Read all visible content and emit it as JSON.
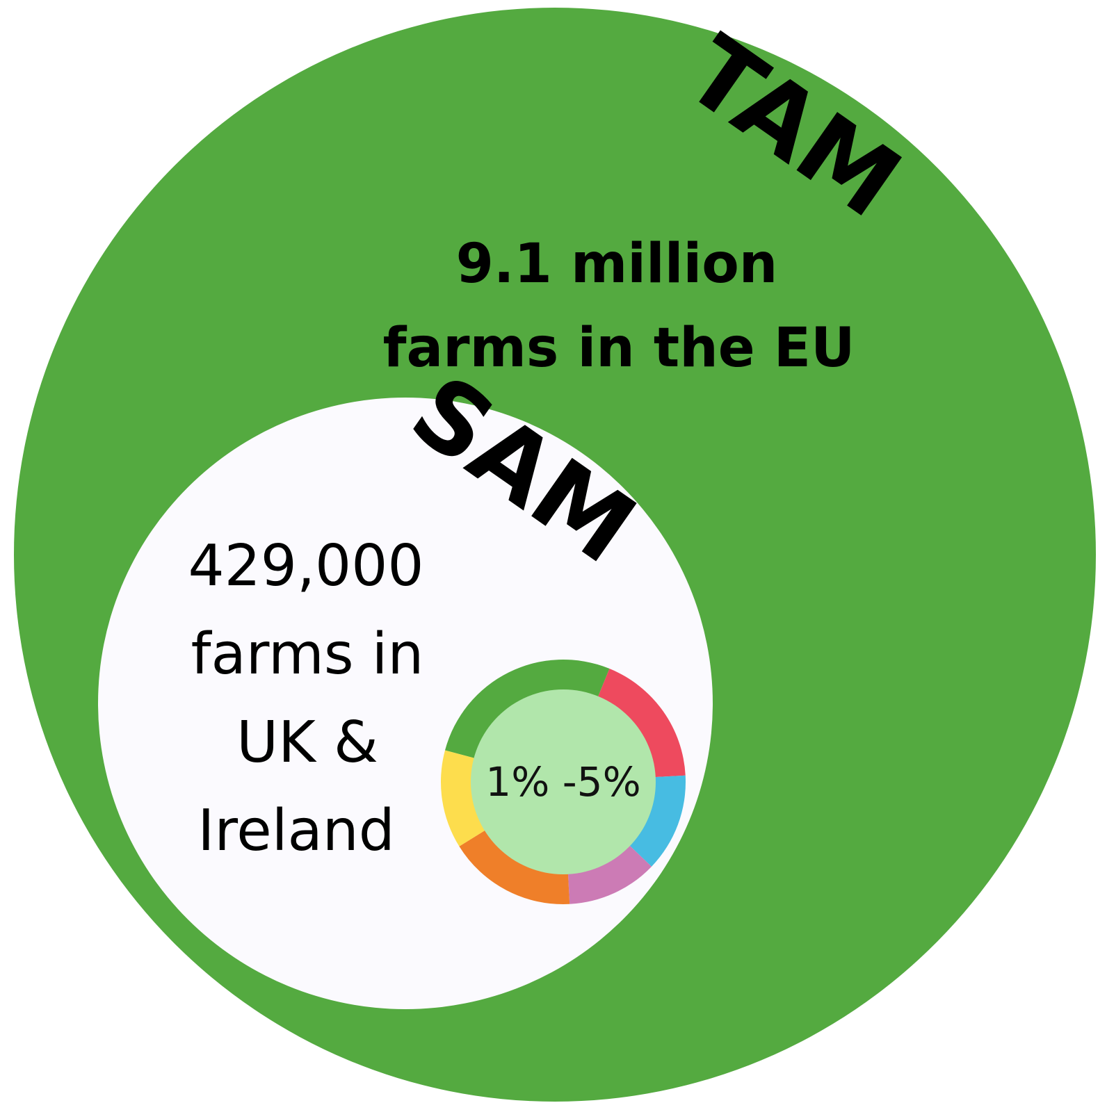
{
  "tam": {
    "label": "TAM",
    "line1": "9.1 million",
    "line2": "farms in the EU",
    "color": "#54aa40"
  },
  "sam": {
    "label": "SAM",
    "line1": "429,000",
    "line2": "farms in",
    "line3": "UK &",
    "line4": "Ireland",
    "color": "#fbfafe"
  },
  "som": {
    "value": "1% -5%",
    "center_color": "#b1e6ab",
    "segments": [
      {
        "color": "#54aa40",
        "share": 0.27
      },
      {
        "color": "#ee4a5e",
        "share": 0.18
      },
      {
        "color": "#47bce2",
        "share": 0.13
      },
      {
        "color": "#cc7bb5",
        "share": 0.12
      },
      {
        "color": "#ef7f29",
        "share": 0.17
      },
      {
        "color": "#fddd4d",
        "share": 0.13
      }
    ]
  }
}
